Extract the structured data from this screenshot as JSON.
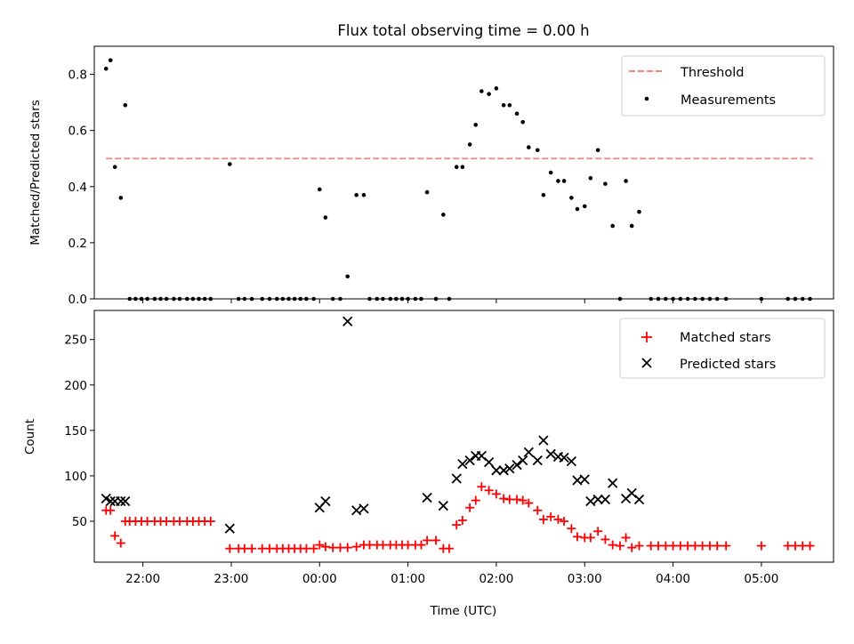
{
  "figure_title": "Flux total observing time = 0.00 h",
  "chart_data": [
    {
      "type": "scatter",
      "title": "Flux total observing time = 0.00 h",
      "xlabel": "",
      "ylabel": "Matched/Predicted stars",
      "xlim": [
        "21:27",
        "05:49"
      ],
      "ylim": [
        0,
        0.9
      ],
      "yticks": [
        "0.0",
        "0.2",
        "0.4",
        "0.6",
        "0.8"
      ],
      "xticks": [
        "22:00",
        "23:00",
        "00:00",
        "01:00",
        "02:00",
        "03:00",
        "04:00",
        "05:00"
      ],
      "x_unit": "Time (UTC)",
      "legend": [
        "Threshold",
        "Measurements"
      ],
      "legend_position": "upper right",
      "series": [
        {
          "name": "Threshold",
          "style": "dashed-line",
          "color": "#ff7f7f",
          "points": [
            [
              "21:35",
              0.5
            ],
            [
              "05:35",
              0.5
            ]
          ]
        },
        {
          "name": "Measurements",
          "style": "dots",
          "color": "#000000",
          "points": [
            [
              "21:35",
              0.82
            ],
            [
              "21:38",
              0.85
            ],
            [
              "21:41",
              0.47
            ],
            [
              "21:45",
              0.36
            ],
            [
              "21:48",
              0.69
            ],
            [
              "21:51",
              0
            ],
            [
              "21:55",
              0
            ],
            [
              "21:59",
              0
            ],
            [
              "22:03",
              0
            ],
            [
              "22:08",
              0
            ],
            [
              "22:12",
              0
            ],
            [
              "22:16",
              0
            ],
            [
              "22:21",
              0
            ],
            [
              "22:25",
              0
            ],
            [
              "22:30",
              0
            ],
            [
              "22:34",
              0
            ],
            [
              "22:38",
              0
            ],
            [
              "22:42",
              0
            ],
            [
              "22:46",
              0
            ],
            [
              "22:59",
              0.48
            ],
            [
              "23:05",
              0
            ],
            [
              "23:09",
              0
            ],
            [
              "23:14",
              0
            ],
            [
              "23:21",
              0
            ],
            [
              "23:26",
              0
            ],
            [
              "23:31",
              0
            ],
            [
              "23:35",
              0
            ],
            [
              "23:39",
              0
            ],
            [
              "23:43",
              0
            ],
            [
              "23:47",
              0
            ],
            [
              "23:51",
              0
            ],
            [
              "23:56",
              0
            ],
            [
              "00:00",
              0.39
            ],
            [
              "00:04",
              0.29
            ],
            [
              "00:09",
              0
            ],
            [
              "00:14",
              0
            ],
            [
              "00:19",
              0.08
            ],
            [
              "00:25",
              0.37
            ],
            [
              "00:30",
              0.37
            ],
            [
              "00:34",
              0
            ],
            [
              "00:39",
              0
            ],
            [
              "00:43",
              0
            ],
            [
              "00:48",
              0
            ],
            [
              "00:52",
              0
            ],
            [
              "00:56",
              0
            ],
            [
              "01:00",
              0
            ],
            [
              "01:05",
              0
            ],
            [
              "01:09",
              0
            ],
            [
              "01:13",
              0.38
            ],
            [
              "01:19",
              0
            ],
            [
              "01:24",
              0.3
            ],
            [
              "01:28",
              0
            ],
            [
              "01:33",
              0.47
            ],
            [
              "01:37",
              0.47
            ],
            [
              "01:42",
              0.55
            ],
            [
              "01:46",
              0.62
            ],
            [
              "01:50",
              0.74
            ],
            [
              "01:55",
              0.73
            ],
            [
              "02:00",
              0.75
            ],
            [
              "02:05",
              0.69
            ],
            [
              "02:09",
              0.69
            ],
            [
              "02:14",
              0.66
            ],
            [
              "02:18",
              0.63
            ],
            [
              "02:22",
              0.54
            ],
            [
              "02:28",
              0.53
            ],
            [
              "02:32",
              0.37
            ],
            [
              "02:37",
              0.45
            ],
            [
              "02:42",
              0.42
            ],
            [
              "02:46",
              0.42
            ],
            [
              "02:51",
              0.36
            ],
            [
              "02:55",
              0.32
            ],
            [
              "03:00",
              0.33
            ],
            [
              "03:04",
              0.43
            ],
            [
              "03:09",
              0.53
            ],
            [
              "03:14",
              0.41
            ],
            [
              "03:19",
              0.26
            ],
            [
              "03:24",
              0
            ],
            [
              "03:28",
              0.42
            ],
            [
              "03:32",
              0.26
            ],
            [
              "03:37",
              0.31
            ],
            [
              "03:45",
              0
            ],
            [
              "03:50",
              0
            ],
            [
              "03:55",
              0
            ],
            [
              "04:00",
              0
            ],
            [
              "04:05",
              0
            ],
            [
              "04:10",
              0
            ],
            [
              "04:15",
              0
            ],
            [
              "04:20",
              0
            ],
            [
              "04:25",
              0
            ],
            [
              "04:30",
              0
            ],
            [
              "04:36",
              0
            ],
            [
              "05:00",
              0
            ],
            [
              "05:18",
              0
            ],
            [
              "05:23",
              0
            ],
            [
              "05:28",
              0
            ],
            [
              "05:33",
              0
            ]
          ]
        }
      ]
    },
    {
      "type": "scatter",
      "title": "",
      "xlabel": "Time (UTC)",
      "ylabel": "Count",
      "xlim": [
        "21:27",
        "05:49"
      ],
      "ylim": [
        5,
        282
      ],
      "yticks": [
        "50",
        "100",
        "150",
        "200",
        "250"
      ],
      "xticks": [
        "22:00",
        "23:00",
        "00:00",
        "01:00",
        "02:00",
        "03:00",
        "04:00",
        "05:00"
      ],
      "legend": [
        "Matched stars",
        "Predicted stars"
      ],
      "legend_position": "upper right",
      "series": [
        {
          "name": "Matched stars",
          "marker": "+",
          "color": "#ff0000",
          "points": [
            [
              "21:35",
              62
            ],
            [
              "21:38",
              62
            ],
            [
              "21:41",
              34
            ],
            [
              "21:45",
              26
            ],
            [
              "21:48",
              50
            ],
            [
              "21:51",
              50
            ],
            [
              "21:55",
              50
            ],
            [
              "21:59",
              50
            ],
            [
              "22:03",
              50
            ],
            [
              "22:08",
              50
            ],
            [
              "22:12",
              50
            ],
            [
              "22:16",
              50
            ],
            [
              "22:21",
              50
            ],
            [
              "22:25",
              50
            ],
            [
              "22:30",
              50
            ],
            [
              "22:34",
              50
            ],
            [
              "22:38",
              50
            ],
            [
              "22:42",
              50
            ],
            [
              "22:46",
              50
            ],
            [
              "22:59",
              20
            ],
            [
              "23:05",
              20
            ],
            [
              "23:09",
              20
            ],
            [
              "23:14",
              20
            ],
            [
              "23:21",
              20
            ],
            [
              "23:26",
              20
            ],
            [
              "23:31",
              20
            ],
            [
              "23:35",
              20
            ],
            [
              "23:39",
              20
            ],
            [
              "23:43",
              20
            ],
            [
              "23:47",
              20
            ],
            [
              "23:51",
              20
            ],
            [
              "23:56",
              20
            ],
            [
              "00:00",
              24
            ],
            [
              "00:04",
              22
            ],
            [
              "00:09",
              21
            ],
            [
              "00:14",
              21
            ],
            [
              "00:19",
              21
            ],
            [
              "00:25",
              22
            ],
            [
              "00:30",
              24
            ],
            [
              "00:34",
              24
            ],
            [
              "00:39",
              24
            ],
            [
              "00:43",
              24
            ],
            [
              "00:48",
              24
            ],
            [
              "00:52",
              24
            ],
            [
              "00:56",
              24
            ],
            [
              "01:00",
              24
            ],
            [
              "01:05",
              24
            ],
            [
              "01:09",
              24
            ],
            [
              "01:13",
              29
            ],
            [
              "01:19",
              29
            ],
            [
              "01:24",
              20
            ],
            [
              "01:28",
              20
            ],
            [
              "01:33",
              46
            ],
            [
              "01:37",
              51
            ],
            [
              "01:42",
              65
            ],
            [
              "01:46",
              73
            ],
            [
              "01:50",
              88
            ],
            [
              "01:55",
              84
            ],
            [
              "02:00",
              80
            ],
            [
              "02:05",
              75
            ],
            [
              "02:09",
              74
            ],
            [
              "02:14",
              74
            ],
            [
              "02:18",
              73
            ],
            [
              "02:22",
              70
            ],
            [
              "02:28",
              62
            ],
            [
              "02:32",
              52
            ],
            [
              "02:37",
              55
            ],
            [
              "02:42",
              52
            ],
            [
              "02:46",
              50
            ],
            [
              "02:51",
              42
            ],
            [
              "02:55",
              33
            ],
            [
              "03:00",
              32
            ],
            [
              "03:04",
              32
            ],
            [
              "03:09",
              39
            ],
            [
              "03:14",
              30
            ],
            [
              "03:19",
              24
            ],
            [
              "03:24",
              23
            ],
            [
              "03:28",
              32
            ],
            [
              "03:32",
              21
            ],
            [
              "03:37",
              23
            ],
            [
              "03:45",
              23
            ],
            [
              "03:50",
              23
            ],
            [
              "03:55",
              23
            ],
            [
              "04:00",
              23
            ],
            [
              "04:05",
              23
            ],
            [
              "04:10",
              23
            ],
            [
              "04:15",
              23
            ],
            [
              "04:20",
              23
            ],
            [
              "04:25",
              23
            ],
            [
              "04:30",
              23
            ],
            [
              "04:36",
              23
            ],
            [
              "05:00",
              23
            ],
            [
              "05:18",
              23
            ],
            [
              "05:23",
              23
            ],
            [
              "05:28",
              23
            ],
            [
              "05:33",
              23
            ]
          ]
        },
        {
          "name": "Predicted stars",
          "marker": "x",
          "color": "#000000",
          "points": [
            [
              "21:35",
              75
            ],
            [
              "21:38",
              72
            ],
            [
              "21:41",
              72
            ],
            [
              "21:45",
              72
            ],
            [
              "21:48",
              72
            ],
            [
              "22:59",
              42
            ],
            [
              "00:00",
              65
            ],
            [
              "00:04",
              72
            ],
            [
              "00:19",
              270
            ],
            [
              "00:25",
              62
            ],
            [
              "00:30",
              64
            ],
            [
              "01:13",
              76
            ],
            [
              "01:24",
              67
            ],
            [
              "01:33",
              97
            ],
            [
              "01:37",
              113
            ],
            [
              "01:42",
              117
            ],
            [
              "01:46",
              122
            ],
            [
              "01:50",
              122
            ],
            [
              "01:55",
              115
            ],
            [
              "02:00",
              106
            ],
            [
              "02:05",
              106
            ],
            [
              "02:09",
              108
            ],
            [
              "02:14",
              112
            ],
            [
              "02:18",
              117
            ],
            [
              "02:22",
              126
            ],
            [
              "02:28",
              117
            ],
            [
              "02:32",
              139
            ],
            [
              "02:37",
              124
            ],
            [
              "02:42",
              121
            ],
            [
              "02:46",
              120
            ],
            [
              "02:51",
              116
            ],
            [
              "02:55",
              95
            ],
            [
              "03:00",
              96
            ],
            [
              "03:04",
              72
            ],
            [
              "03:09",
              74
            ],
            [
              "03:14",
              74
            ],
            [
              "03:19",
              92
            ],
            [
              "03:28",
              75
            ],
            [
              "03:32",
              81
            ],
            [
              "03:37",
              74
            ]
          ]
        }
      ]
    }
  ]
}
